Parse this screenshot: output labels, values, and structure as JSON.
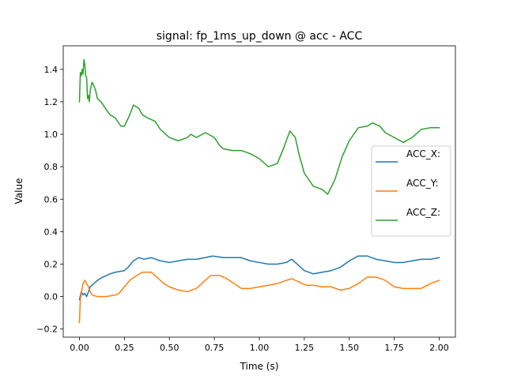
{
  "chart_data": {
    "type": "line",
    "title": "signal: fp_1ms_up_down @ acc - ACC",
    "xlabel": "Time (s)",
    "ylabel": "Value",
    "xlim": [
      -0.09,
      2.09
    ],
    "ylim": [
      -0.25,
      1.545
    ],
    "xticks": [
      0.0,
      0.25,
      0.5,
      0.75,
      1.0,
      1.25,
      1.5,
      1.75,
      2.0
    ],
    "xtick_labels": [
      "0.00",
      "0.25",
      "0.50",
      "0.75",
      "1.00",
      "1.25",
      "1.50",
      "1.75",
      "2.00"
    ],
    "yticks": [
      -0.2,
      0.0,
      0.2,
      0.4,
      0.6,
      0.8,
      1.0,
      1.2,
      1.4
    ],
    "ytick_labels": [
      "−0.2",
      "0.0",
      "0.2",
      "0.4",
      "0.6",
      "0.8",
      "1.0",
      "1.2",
      "1.4"
    ],
    "grid": false,
    "legend_position": "center-right",
    "series": [
      {
        "name": "ACC_X:",
        "color": "#1f77b4",
        "points": [
          [
            0.0,
            -0.02
          ],
          [
            0.01,
            0.03
          ],
          [
            0.02,
            0.01
          ],
          [
            0.03,
            0.02
          ],
          [
            0.04,
            0.0
          ],
          [
            0.05,
            0.03
          ],
          [
            0.06,
            0.06
          ],
          [
            0.08,
            0.08
          ],
          [
            0.1,
            0.1
          ],
          [
            0.13,
            0.12
          ],
          [
            0.17,
            0.14
          ],
          [
            0.2,
            0.15
          ],
          [
            0.25,
            0.16
          ],
          [
            0.27,
            0.18
          ],
          [
            0.3,
            0.22
          ],
          [
            0.33,
            0.24
          ],
          [
            0.36,
            0.23
          ],
          [
            0.4,
            0.24
          ],
          [
            0.45,
            0.22
          ],
          [
            0.5,
            0.21
          ],
          [
            0.55,
            0.22
          ],
          [
            0.6,
            0.23
          ],
          [
            0.65,
            0.23
          ],
          [
            0.7,
            0.24
          ],
          [
            0.74,
            0.25
          ],
          [
            0.8,
            0.24
          ],
          [
            0.85,
            0.24
          ],
          [
            0.9,
            0.24
          ],
          [
            0.95,
            0.22
          ],
          [
            1.0,
            0.21
          ],
          [
            1.05,
            0.2
          ],
          [
            1.1,
            0.2
          ],
          [
            1.15,
            0.21
          ],
          [
            1.18,
            0.23
          ],
          [
            1.21,
            0.2
          ],
          [
            1.25,
            0.16
          ],
          [
            1.3,
            0.14
          ],
          [
            1.35,
            0.15
          ],
          [
            1.4,
            0.16
          ],
          [
            1.45,
            0.18
          ],
          [
            1.5,
            0.22
          ],
          [
            1.55,
            0.25
          ],
          [
            1.6,
            0.25
          ],
          [
            1.65,
            0.23
          ],
          [
            1.7,
            0.22
          ],
          [
            1.75,
            0.21
          ],
          [
            1.8,
            0.21
          ],
          [
            1.85,
            0.22
          ],
          [
            1.9,
            0.23
          ],
          [
            1.95,
            0.23
          ],
          [
            2.0,
            0.24
          ]
        ]
      },
      {
        "name": "ACC_Y:",
        "color": "#ff7f0e",
        "points": [
          [
            0.0,
            -0.16
          ],
          [
            0.005,
            -0.02
          ],
          [
            0.01,
            0.02
          ],
          [
            0.02,
            0.08
          ],
          [
            0.03,
            0.1
          ],
          [
            0.04,
            0.08
          ],
          [
            0.05,
            0.06
          ],
          [
            0.06,
            0.03
          ],
          [
            0.07,
            0.01
          ],
          [
            0.1,
            0.0
          ],
          [
            0.15,
            0.0
          ],
          [
            0.2,
            0.01
          ],
          [
            0.22,
            0.02
          ],
          [
            0.25,
            0.06
          ],
          [
            0.28,
            0.1
          ],
          [
            0.32,
            0.13
          ],
          [
            0.35,
            0.15
          ],
          [
            0.4,
            0.15
          ],
          [
            0.43,
            0.12
          ],
          [
            0.47,
            0.08
          ],
          [
            0.5,
            0.06
          ],
          [
            0.55,
            0.04
          ],
          [
            0.6,
            0.03
          ],
          [
            0.65,
            0.05
          ],
          [
            0.7,
            0.1
          ],
          [
            0.73,
            0.13
          ],
          [
            0.78,
            0.13
          ],
          [
            0.82,
            0.11
          ],
          [
            0.86,
            0.08
          ],
          [
            0.9,
            0.05
          ],
          [
            0.95,
            0.05
          ],
          [
            1.0,
            0.06
          ],
          [
            1.05,
            0.07
          ],
          [
            1.1,
            0.08
          ],
          [
            1.15,
            0.1
          ],
          [
            1.18,
            0.11
          ],
          [
            1.22,
            0.09
          ],
          [
            1.26,
            0.07
          ],
          [
            1.3,
            0.07
          ],
          [
            1.35,
            0.06
          ],
          [
            1.4,
            0.06
          ],
          [
            1.45,
            0.04
          ],
          [
            1.5,
            0.05
          ],
          [
            1.55,
            0.08
          ],
          [
            1.6,
            0.12
          ],
          [
            1.65,
            0.12
          ],
          [
            1.7,
            0.1
          ],
          [
            1.75,
            0.06
          ],
          [
            1.8,
            0.05
          ],
          [
            1.85,
            0.05
          ],
          [
            1.9,
            0.05
          ],
          [
            1.95,
            0.08
          ],
          [
            2.0,
            0.1
          ]
        ]
      },
      {
        "name": "ACC_Z:",
        "color": "#2ca02c",
        "points": [
          [
            0.0,
            1.2
          ],
          [
            0.005,
            1.38
          ],
          [
            0.01,
            1.36
          ],
          [
            0.015,
            1.4
          ],
          [
            0.02,
            1.37
          ],
          [
            0.025,
            1.46
          ],
          [
            0.03,
            1.43
          ],
          [
            0.035,
            1.36
          ],
          [
            0.04,
            1.35
          ],
          [
            0.045,
            1.22
          ],
          [
            0.05,
            1.24
          ],
          [
            0.055,
            1.2
          ],
          [
            0.06,
            1.27
          ],
          [
            0.07,
            1.32
          ],
          [
            0.08,
            1.3
          ],
          [
            0.09,
            1.27
          ],
          [
            0.1,
            1.22
          ],
          [
            0.12,
            1.2
          ],
          [
            0.15,
            1.15
          ],
          [
            0.17,
            1.12
          ],
          [
            0.2,
            1.1
          ],
          [
            0.23,
            1.05
          ],
          [
            0.25,
            1.05
          ],
          [
            0.28,
            1.12
          ],
          [
            0.3,
            1.18
          ],
          [
            0.33,
            1.16
          ],
          [
            0.35,
            1.12
          ],
          [
            0.38,
            1.1
          ],
          [
            0.42,
            1.08
          ],
          [
            0.45,
            1.03
          ],
          [
            0.5,
            0.98
          ],
          [
            0.55,
            0.96
          ],
          [
            0.6,
            0.98
          ],
          [
            0.62,
            1.0
          ],
          [
            0.65,
            0.98
          ],
          [
            0.7,
            1.01
          ],
          [
            0.75,
            0.98
          ],
          [
            0.78,
            0.93
          ],
          [
            0.8,
            0.91
          ],
          [
            0.85,
            0.9
          ],
          [
            0.9,
            0.9
          ],
          [
            0.95,
            0.88
          ],
          [
            1.0,
            0.85
          ],
          [
            1.05,
            0.8
          ],
          [
            1.1,
            0.82
          ],
          [
            1.13,
            0.9
          ],
          [
            1.17,
            1.02
          ],
          [
            1.2,
            0.98
          ],
          [
            1.22,
            0.88
          ],
          [
            1.25,
            0.76
          ],
          [
            1.3,
            0.68
          ],
          [
            1.35,
            0.66
          ],
          [
            1.38,
            0.63
          ],
          [
            1.42,
            0.72
          ],
          [
            1.46,
            0.86
          ],
          [
            1.5,
            0.96
          ],
          [
            1.55,
            1.04
          ],
          [
            1.6,
            1.05
          ],
          [
            1.63,
            1.07
          ],
          [
            1.67,
            1.05
          ],
          [
            1.7,
            1.01
          ],
          [
            1.75,
            0.98
          ],
          [
            1.8,
            0.95
          ],
          [
            1.85,
            0.98
          ],
          [
            1.9,
            1.03
          ],
          [
            1.95,
            1.04
          ],
          [
            2.0,
            1.04
          ]
        ]
      }
    ]
  }
}
